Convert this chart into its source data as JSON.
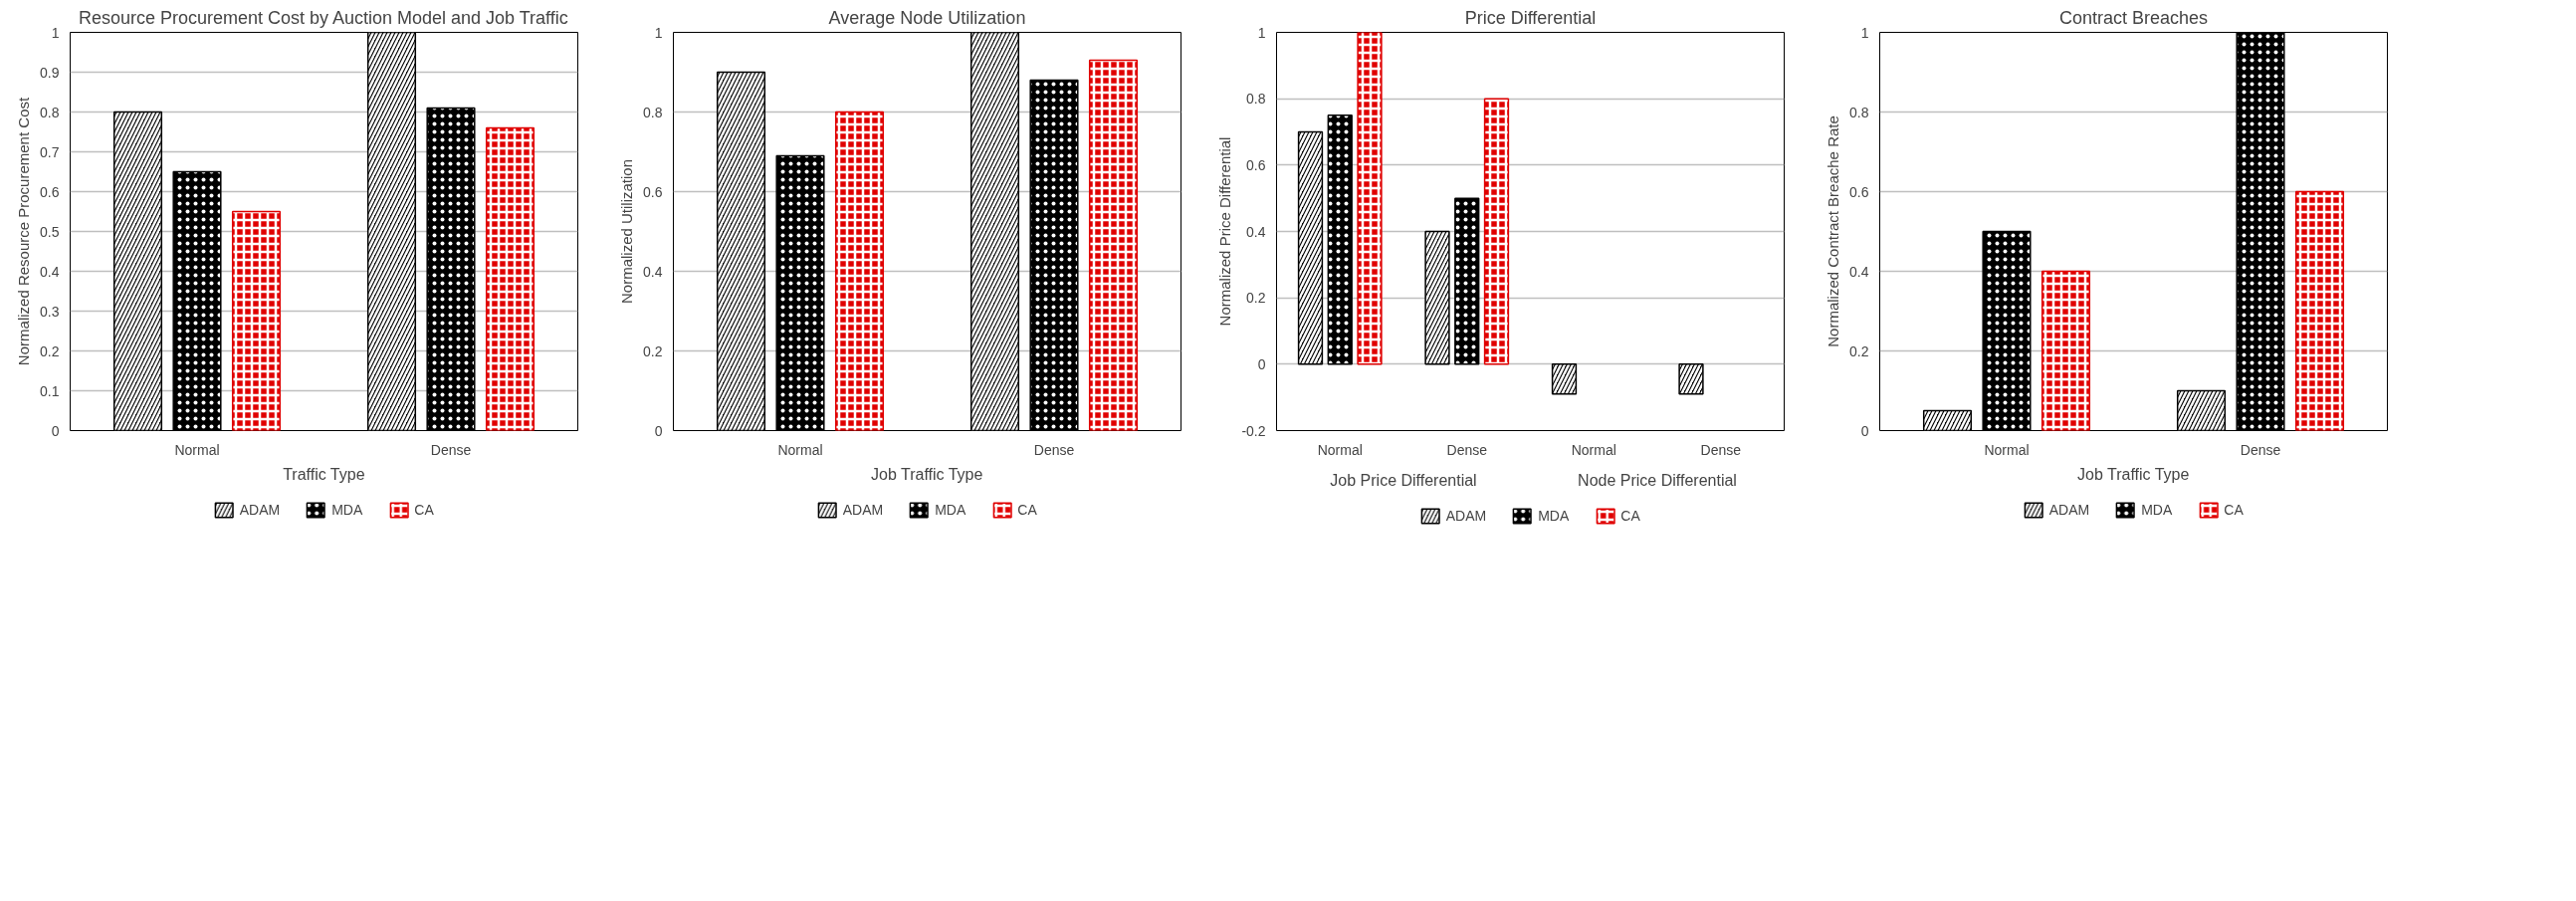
{
  "chart_data": [
    {
      "type": "bar",
      "title": "Resource Procurement Cost by Auction Model and Job Traffic",
      "xlabel": "Traffic Type",
      "ylabel": "Normalized Resource Procurement Cost",
      "categories": [
        "Normal",
        "Dense"
      ],
      "ylim": [
        0,
        1
      ],
      "yticks": [
        0,
        0.1,
        0.2,
        0.3,
        0.4,
        0.5,
        0.6,
        0.7,
        0.8,
        0.9,
        1
      ],
      "grid": "y",
      "legend": "bottom",
      "series": [
        {
          "name": "ADAM",
          "color": "#000000",
          "values": [
            0.8,
            1.0
          ]
        },
        {
          "name": "MDA",
          "color": "#000000",
          "values": [
            0.65,
            0.81
          ]
        },
        {
          "name": "CA",
          "color": "#e00000",
          "values": [
            0.55,
            0.76
          ]
        }
      ]
    },
    {
      "type": "bar",
      "title": "Average Node Utilization",
      "xlabel": "Job Traffic Type",
      "ylabel": "Normalized Utilization",
      "categories": [
        "Normal",
        "Dense"
      ],
      "ylim": [
        0,
        1
      ],
      "yticks": [
        0,
        0.2,
        0.4,
        0.6,
        0.8,
        1
      ],
      "grid": "y",
      "legend": "bottom",
      "series": [
        {
          "name": "ADAM",
          "color": "#000000",
          "values": [
            0.9,
            1.0
          ]
        },
        {
          "name": "MDA",
          "color": "#000000",
          "values": [
            0.69,
            0.88
          ]
        },
        {
          "name": "CA",
          "color": "#e00000",
          "values": [
            0.8,
            0.93
          ]
        }
      ]
    },
    {
      "type": "bar",
      "title": "Price Differential",
      "ylabel": "Normalized Price Differential",
      "categories": [
        "Normal",
        "Dense",
        "Normal",
        "Dense"
      ],
      "annotations": [
        "Job Price Differential",
        "Node Price Differential"
      ],
      "ylim": [
        -0.2,
        1
      ],
      "yticks": [
        -0.2,
        0,
        0.2,
        0.4,
        0.6,
        0.8,
        1
      ],
      "grid": "y",
      "legend": "bottom",
      "series": [
        {
          "name": "ADAM",
          "color": "#000000",
          "values": [
            0.7,
            0.4,
            -0.09,
            -0.09
          ]
        },
        {
          "name": "MDA",
          "color": "#000000",
          "values": [
            0.75,
            0.5,
            null,
            null
          ]
        },
        {
          "name": "CA",
          "color": "#e00000",
          "values": [
            1.0,
            0.8,
            null,
            null
          ]
        }
      ]
    },
    {
      "type": "bar",
      "title": "Contract Breaches",
      "xlabel": "Job Traffic Type",
      "ylabel": "Normalized Contract Breache Rate",
      "categories": [
        "Normal",
        "Dense"
      ],
      "ylim": [
        0,
        1
      ],
      "yticks": [
        0,
        0.2,
        0.4,
        0.6,
        0.8,
        1
      ],
      "grid": "y",
      "legend": "bottom",
      "series": [
        {
          "name": "ADAM",
          "color": "#000000",
          "values": [
            0.05,
            0.1
          ]
        },
        {
          "name": "MDA",
          "color": "#000000",
          "values": [
            0.5,
            1.0
          ]
        },
        {
          "name": "CA",
          "color": "#e00000",
          "values": [
            0.4,
            0.6
          ]
        }
      ]
    }
  ]
}
